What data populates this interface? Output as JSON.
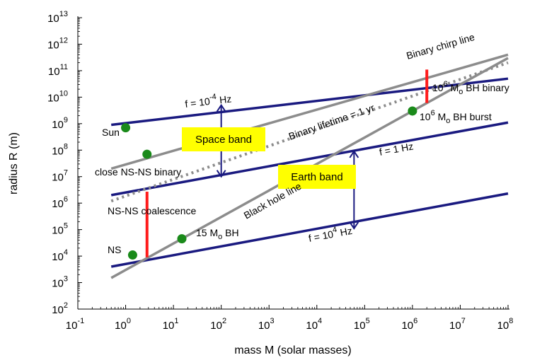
{
  "chart_data": {
    "type": "line",
    "x_scale": "log",
    "y_scale": "log",
    "xlim": [
      0.1,
      100000000
    ],
    "ylim": [
      100,
      10000000000000
    ],
    "xlabel": "mass M (solar masses)",
    "ylabel": "radius R (m)",
    "x_ticks": [
      {
        "base": "10",
        "exp": "-1",
        "value": 0.1
      },
      {
        "base": "10",
        "exp": "0",
        "value": 1
      },
      {
        "base": "10",
        "exp": "1",
        "value": 10
      },
      {
        "base": "10",
        "exp": "2",
        "value": 100
      },
      {
        "base": "10",
        "exp": "3",
        "value": 1000
      },
      {
        "base": "10",
        "exp": "4",
        "value": 10000
      },
      {
        "base": "10",
        "exp": "5",
        "value": 100000
      },
      {
        "base": "10",
        "exp": "6",
        "value": 1000000
      },
      {
        "base": "10",
        "exp": "7",
        "value": 10000000
      },
      {
        "base": "10",
        "exp": "8",
        "value": 100000000
      }
    ],
    "y_ticks": [
      {
        "base": "10",
        "exp": "2",
        "value": 100
      },
      {
        "base": "10",
        "exp": "3",
        "value": 1000
      },
      {
        "base": "10",
        "exp": "4",
        "value": 10000
      },
      {
        "base": "10",
        "exp": "5",
        "value": 100000
      },
      {
        "base": "10",
        "exp": "6",
        "value": 1000000
      },
      {
        "base": "10",
        "exp": "7",
        "value": 10000000
      },
      {
        "base": "10",
        "exp": "8",
        "value": 100000000
      },
      {
        "base": "10",
        "exp": "9",
        "value": 1000000000
      },
      {
        "base": "10",
        "exp": "10",
        "value": 10000000000
      },
      {
        "base": "10",
        "exp": "11",
        "value": 100000000000
      },
      {
        "base": "10",
        "exp": "12",
        "value": 1000000000000
      },
      {
        "base": "10",
        "exp": "13",
        "value": 10000000000000
      }
    ],
    "lines": [
      {
        "id": "freq-1e-4",
        "color": "#1a1a80",
        "style": "solid",
        "points": [
          [
            0.5,
            900000000
          ],
          [
            100000000,
            50000000000
          ]
        ]
      },
      {
        "id": "freq-1",
        "color": "#1a1a80",
        "style": "solid",
        "points": [
          [
            0.5,
            2000000
          ],
          [
            100000000,
            1100000000
          ]
        ]
      },
      {
        "id": "freq-1e4",
        "color": "#1a1a80",
        "style": "solid",
        "points": [
          [
            0.5,
            4000
          ],
          [
            100000000,
            2300000
          ]
        ]
      },
      {
        "id": "black-hole-line",
        "color": "#8c8c8c",
        "style": "solid",
        "points": [
          [
            0.5,
            1500
          ],
          [
            100000000,
            300000000000
          ]
        ]
      },
      {
        "id": "binary-chirp-line",
        "color": "#8c8c8c",
        "style": "solid",
        "points": [
          [
            0.5,
            20000000
          ],
          [
            100000000,
            400000000000
          ]
        ]
      },
      {
        "id": "binary-lifetime-1yr",
        "color": "#8c8c8c",
        "style": "dotted",
        "points": [
          [
            0.5,
            1200000
          ],
          [
            100000000,
            200000000000
          ]
        ]
      }
    ],
    "red_segments": [
      {
        "id": "ns-ns-coalescence",
        "x": 2.8,
        "y_from": 9000,
        "y_to": 2700000
      },
      {
        "id": "bh-binary",
        "x": 2000000,
        "y_from": 6000000000,
        "y_to": 110000000000
      }
    ],
    "arrows": [
      {
        "id": "space-band-arrow",
        "x": 100,
        "y_from": 10000000,
        "y_to": 5000000000
      },
      {
        "id": "earth-band-arrow",
        "x": 60000,
        "y_from": 110000,
        "y_to": 90000000
      }
    ],
    "points": [
      {
        "id": "sun",
        "x": 1,
        "y": 700000000,
        "label": "Sun"
      },
      {
        "id": "close-ns-ns",
        "x": 2.8,
        "y": 70000000,
        "label": "close NS-NS binary"
      },
      {
        "id": "ns",
        "x": 1.4,
        "y": 11000,
        "label": "NS"
      },
      {
        "id": "bh-15",
        "x": 15,
        "y": 45000,
        "label_main": "15 M",
        "label_sub": "o",
        "label_tail": " BH"
      },
      {
        "id": "bh-1e6",
        "x": 1000000,
        "y": 3000000000,
        "label_base": "10",
        "label_exp": "6",
        "label_mid": " M",
        "label_sub": "o",
        "label_tail": " BH burst"
      }
    ],
    "annotations": {
      "freq_low": {
        "pre": "f = 10",
        "exp": "-4",
        "post": " Hz"
      },
      "freq_mid": {
        "text": "f = 1 Hz"
      },
      "freq_high": {
        "pre": "f = 10",
        "exp": "4",
        "post": " Hz"
      },
      "binary_chirp": "Binary chirp line",
      "binary_lifetime": "Binary lifetime = 1 yr",
      "black_hole_line": "Black hole line",
      "ns_ns_coalescence": "NS-NS coalescence",
      "bh_binary": {
        "base": "10",
        "exp": "6",
        "mid": " M",
        "sub": "o",
        "tail": " BH binary"
      }
    },
    "bands": [
      {
        "id": "space-band",
        "label": "Space band",
        "fill": "#ffff00"
      },
      {
        "id": "earth-band",
        "label": "Earth band",
        "fill": "#ffff00"
      }
    ],
    "colors": {
      "frequency_line": "#1a1a80",
      "gray_line": "#8c8c8c",
      "red": "#ff1a1a",
      "point": "#1a8a1a",
      "band_fill": "#ffff00"
    }
  }
}
